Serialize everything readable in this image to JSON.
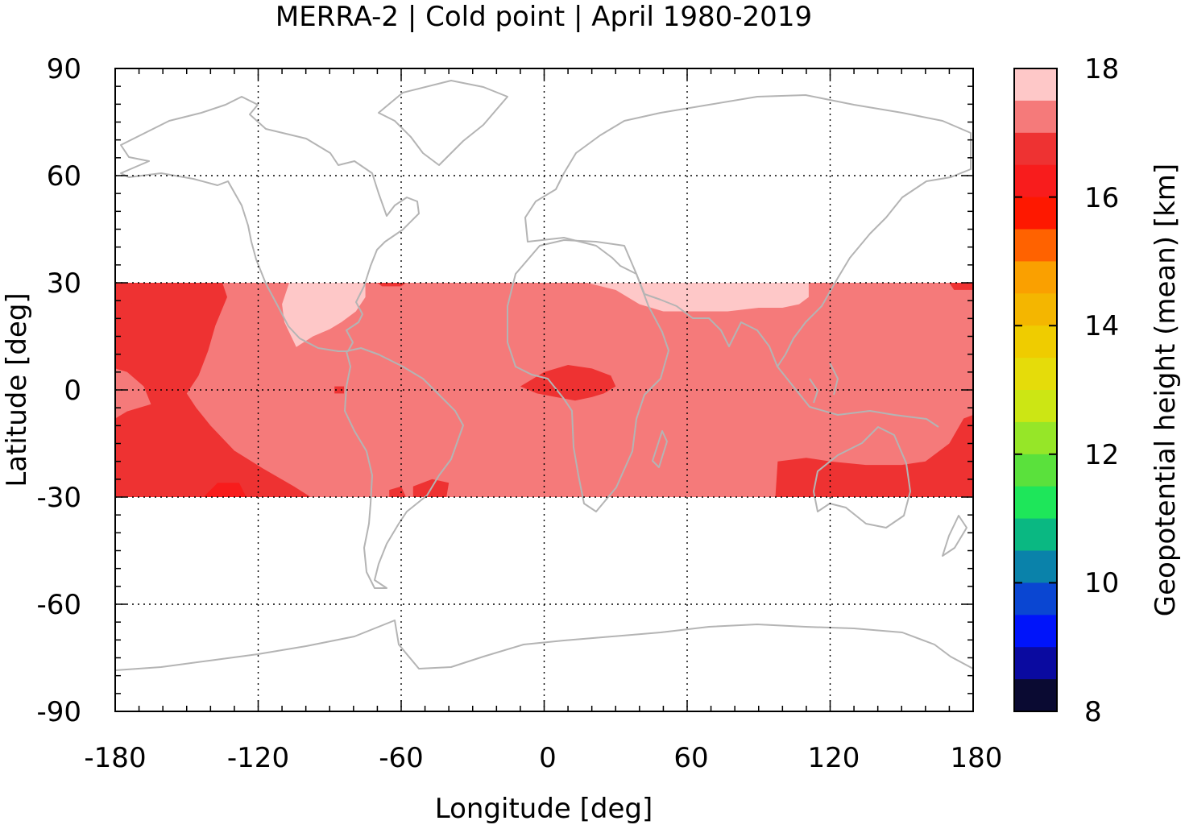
{
  "chart_data": {
    "type": "heatmap",
    "title": "MERRA-2 | Cold point | April 1980-2019",
    "xlabel": "Longitude [deg]",
    "ylabel": "Latitude [deg]",
    "xlim": [
      -180,
      180
    ],
    "ylim": [
      -90,
      90
    ],
    "x_ticks": [
      -180,
      -120,
      -60,
      0,
      60,
      120,
      180
    ],
    "y_ticks": [
      90,
      60,
      30,
      0,
      -30,
      -60,
      -90
    ],
    "x_tick_labels": [
      "-180",
      "-120",
      "-60",
      "0",
      "60",
      "120",
      "180"
    ],
    "y_tick_labels": [
      "90",
      "60",
      "30",
      "0",
      "-30",
      "-60",
      "-90"
    ],
    "grid": true,
    "data_lat_range": [
      -30,
      30
    ],
    "colorbar": {
      "label": "Geopotential height (mean) [km]",
      "range": [
        8,
        18
      ],
      "tick_values": [
        18,
        16,
        14,
        12,
        10,
        8
      ],
      "tick_labels": [
        "18",
        "16",
        "14",
        "12",
        "10",
        "8"
      ],
      "levels": [
        {
          "from": 17.5,
          "to": 18.0,
          "color": "#fec8c8"
        },
        {
          "from": 17.0,
          "to": 17.5,
          "color": "#f57a7a"
        },
        {
          "from": 16.5,
          "to": 17.0,
          "color": "#ee3232"
        },
        {
          "from": 16.0,
          "to": 16.5,
          "color": "#f81c1c"
        },
        {
          "from": 15.5,
          "to": 16.0,
          "color": "#fe1800"
        },
        {
          "from": 15.0,
          "to": 15.5,
          "color": "#ff6200"
        },
        {
          "from": 14.5,
          "to": 15.0,
          "color": "#faa000"
        },
        {
          "from": 14.0,
          "to": 14.5,
          "color": "#f4b600"
        },
        {
          "from": 13.5,
          "to": 14.0,
          "color": "#efcc00"
        },
        {
          "from": 13.0,
          "to": 13.5,
          "color": "#e5dc0a"
        },
        {
          "from": 12.5,
          "to": 13.0,
          "color": "#cce614"
        },
        {
          "from": 12.0,
          "to": 12.5,
          "color": "#96e628"
        },
        {
          "from": 11.5,
          "to": 12.0,
          "color": "#5ae13c"
        },
        {
          "from": 11.0,
          "to": 11.5,
          "color": "#1ee65a"
        },
        {
          "from": 10.5,
          "to": 11.0,
          "color": "#0ab882"
        },
        {
          "from": 10.0,
          "to": 10.5,
          "color": "#0a82aa"
        },
        {
          "from": 9.5,
          "to": 10.0,
          "color": "#0a46d2"
        },
        {
          "from": 9.0,
          "to": 9.5,
          "color": "#0014fa"
        },
        {
          "from": 8.5,
          "to": 9.0,
          "color": "#0a0aa0"
        },
        {
          "from": 8.0,
          "to": 8.5,
          "color": "#0a0a32"
        }
      ]
    },
    "background_color": "#f57a7a",
    "regions": [
      {
        "value": 17.75,
        "color": "#fec8c8",
        "polygon": [
          [
            -107,
            30
          ],
          [
            -75,
            30
          ],
          [
            -75,
            26
          ],
          [
            -79,
            22
          ],
          [
            -85,
            19
          ],
          [
            -90,
            17
          ],
          [
            -97,
            15
          ],
          [
            -104,
            12
          ],
          [
            -109,
            19
          ],
          [
            -110,
            24
          ]
        ]
      },
      {
        "value": 17.75,
        "color": "#fec8c8",
        "polygon": [
          [
            18,
            30
          ],
          [
            111,
            30
          ],
          [
            111,
            26
          ],
          [
            107,
            24
          ],
          [
            100,
            23
          ],
          [
            90,
            23
          ],
          [
            77,
            22
          ],
          [
            60,
            22
          ],
          [
            50,
            22
          ],
          [
            40,
            24
          ],
          [
            30,
            28
          ]
        ]
      },
      {
        "value": 16.75,
        "color": "#ee3232",
        "polygon": [
          [
            -180,
            30
          ],
          [
            -135,
            30
          ],
          [
            -133,
            26
          ],
          [
            -138,
            18
          ],
          [
            -141,
            11
          ],
          [
            -145,
            4
          ],
          [
            -150,
            -1
          ],
          [
            -146,
            -5
          ],
          [
            -140,
            -10
          ],
          [
            -130,
            -17
          ],
          [
            -118,
            -22
          ],
          [
            -105,
            -27
          ],
          [
            -98,
            -30
          ],
          [
            -180,
            -30
          ],
          [
            -180,
            -8
          ],
          [
            -175,
            -6
          ],
          [
            -165,
            -4
          ],
          [
            -168,
            1
          ],
          [
            -175,
            5
          ],
          [
            -180,
            6
          ]
        ]
      },
      {
        "value": 16.75,
        "color": "#ee3232",
        "polygon": [
          [
            -180,
            26
          ],
          [
            -172,
            24
          ],
          [
            -176,
            18
          ],
          [
            -180,
            15
          ]
        ]
      },
      {
        "value": 16.75,
        "color": "#ee3232",
        "polygon": [
          [
            -55,
            -30
          ],
          [
            -41,
            -30
          ],
          [
            -40,
            -26
          ],
          [
            -47,
            -25
          ],
          [
            -55,
            -27
          ]
        ]
      },
      {
        "value": 16.75,
        "color": "#ee3232",
        "polygon": [
          [
            -65,
            -28
          ],
          [
            -60,
            -27
          ],
          [
            -58,
            -30
          ],
          [
            -65,
            -30
          ]
        ]
      },
      {
        "value": 16.75,
        "color": "#ee3232",
        "polygon": [
          [
            97,
            -30
          ],
          [
            180,
            -30
          ],
          [
            180,
            -7
          ],
          [
            176,
            -8
          ],
          [
            170,
            -15
          ],
          [
            160,
            -20
          ],
          [
            150,
            -21
          ],
          [
            135,
            -21
          ],
          [
            120,
            -20
          ],
          [
            110,
            -19
          ],
          [
            98,
            -20
          ]
        ]
      },
      {
        "value": 16.75,
        "color": "#ee3232",
        "polygon": [
          [
            -10,
            1
          ],
          [
            -5,
            3
          ],
          [
            0,
            5
          ],
          [
            10,
            7
          ],
          [
            20,
            6
          ],
          [
            28,
            4
          ],
          [
            30,
            1
          ],
          [
            25,
            -1
          ],
          [
            20,
            -2
          ],
          [
            13,
            -3
          ],
          [
            5,
            -2
          ],
          [
            -3,
            -1
          ]
        ]
      },
      {
        "value": 16.75,
        "color": "#ee3232",
        "polygon": [
          [
            -88,
            1
          ],
          [
            -84,
            1
          ],
          [
            -84,
            -1
          ],
          [
            -88,
            -1
          ]
        ]
      },
      {
        "value": 16.75,
        "color": "#ee3232",
        "polygon": [
          [
            -70,
            30
          ],
          [
            -58,
            30
          ],
          [
            -60,
            29
          ],
          [
            -68,
            29
          ]
        ]
      },
      {
        "value": 16.75,
        "color": "#ee3232",
        "polygon": [
          [
            170,
            30
          ],
          [
            180,
            30
          ],
          [
            180,
            28
          ],
          [
            172,
            28
          ]
        ]
      },
      {
        "value": 16.25,
        "color": "#f81c1c",
        "polygon": [
          [
            -143,
            -30
          ],
          [
            -125,
            -30
          ],
          [
            -128,
            -26
          ],
          [
            -137,
            -26
          ]
        ]
      }
    ],
    "coastline_color": "#b4b4b4"
  }
}
